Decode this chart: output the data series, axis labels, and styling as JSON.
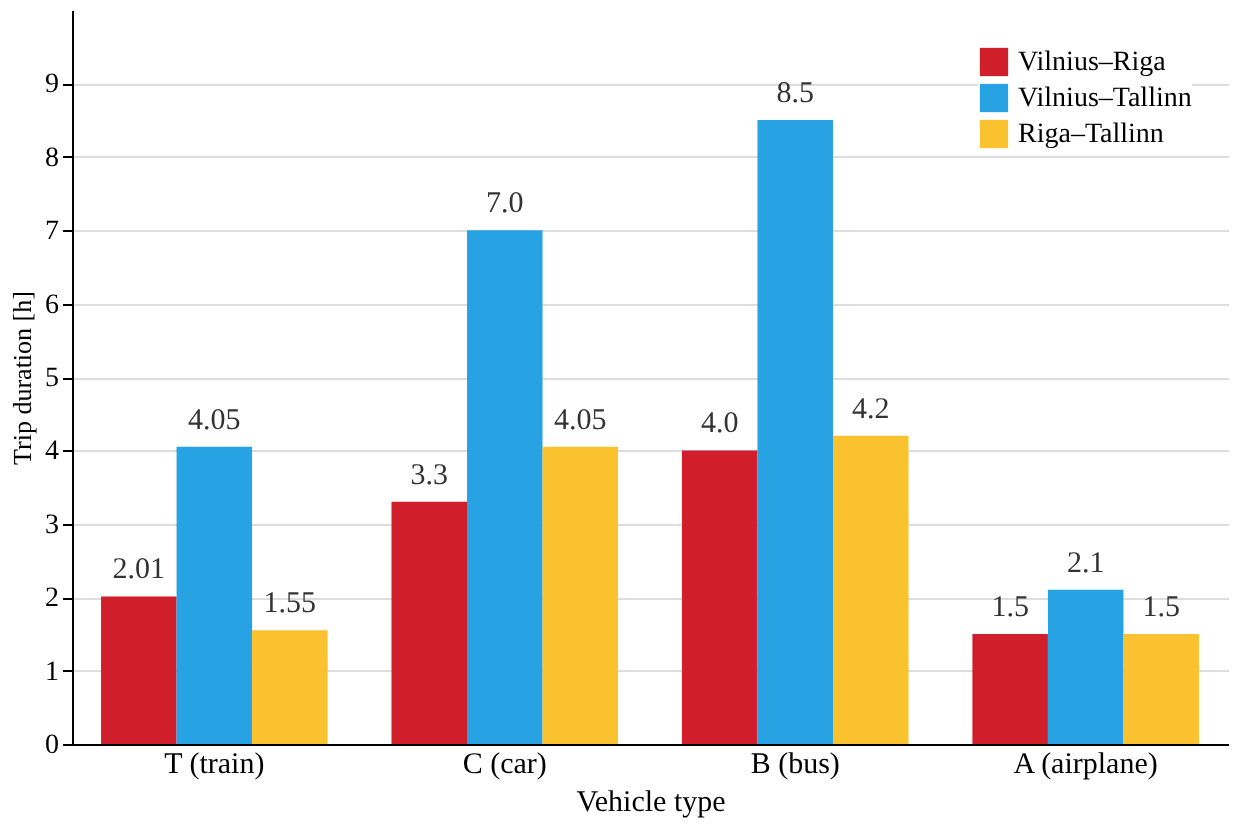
{
  "chart_data": {
    "type": "bar",
    "xlabel": "Vehicle type",
    "ylabel": "Trip duration [h]",
    "categories": [
      "T (train)",
      "C (car)",
      "B (bus)",
      "A (airplane)"
    ],
    "series": [
      {
        "name": "Vilnius–Riga",
        "color": "#d01f2b",
        "values": [
          2.01,
          3.3,
          4.0,
          1.5
        ],
        "value_labels": [
          "2.01",
          "3.3",
          "4.0",
          "1.5"
        ]
      },
      {
        "name": "Vilnius–Tallinn",
        "color": "#27a2e3",
        "values": [
          4.05,
          7.0,
          8.5,
          2.1
        ],
        "value_labels": [
          "4.05",
          "7.0",
          "8.5",
          "2.1"
        ]
      },
      {
        "name": "Riga–Tallinn",
        "color": "#f9c22e",
        "values": [
          1.55,
          4.05,
          4.2,
          1.5
        ],
        "value_labels": [
          "1.55",
          "4.05",
          "4.2",
          "1.5"
        ]
      }
    ],
    "ylim": [
      0,
      10
    ],
    "yticks": [
      0,
      1,
      2,
      3,
      4,
      5,
      6,
      7,
      8,
      9
    ],
    "grid": "y",
    "legend": "top right"
  }
}
